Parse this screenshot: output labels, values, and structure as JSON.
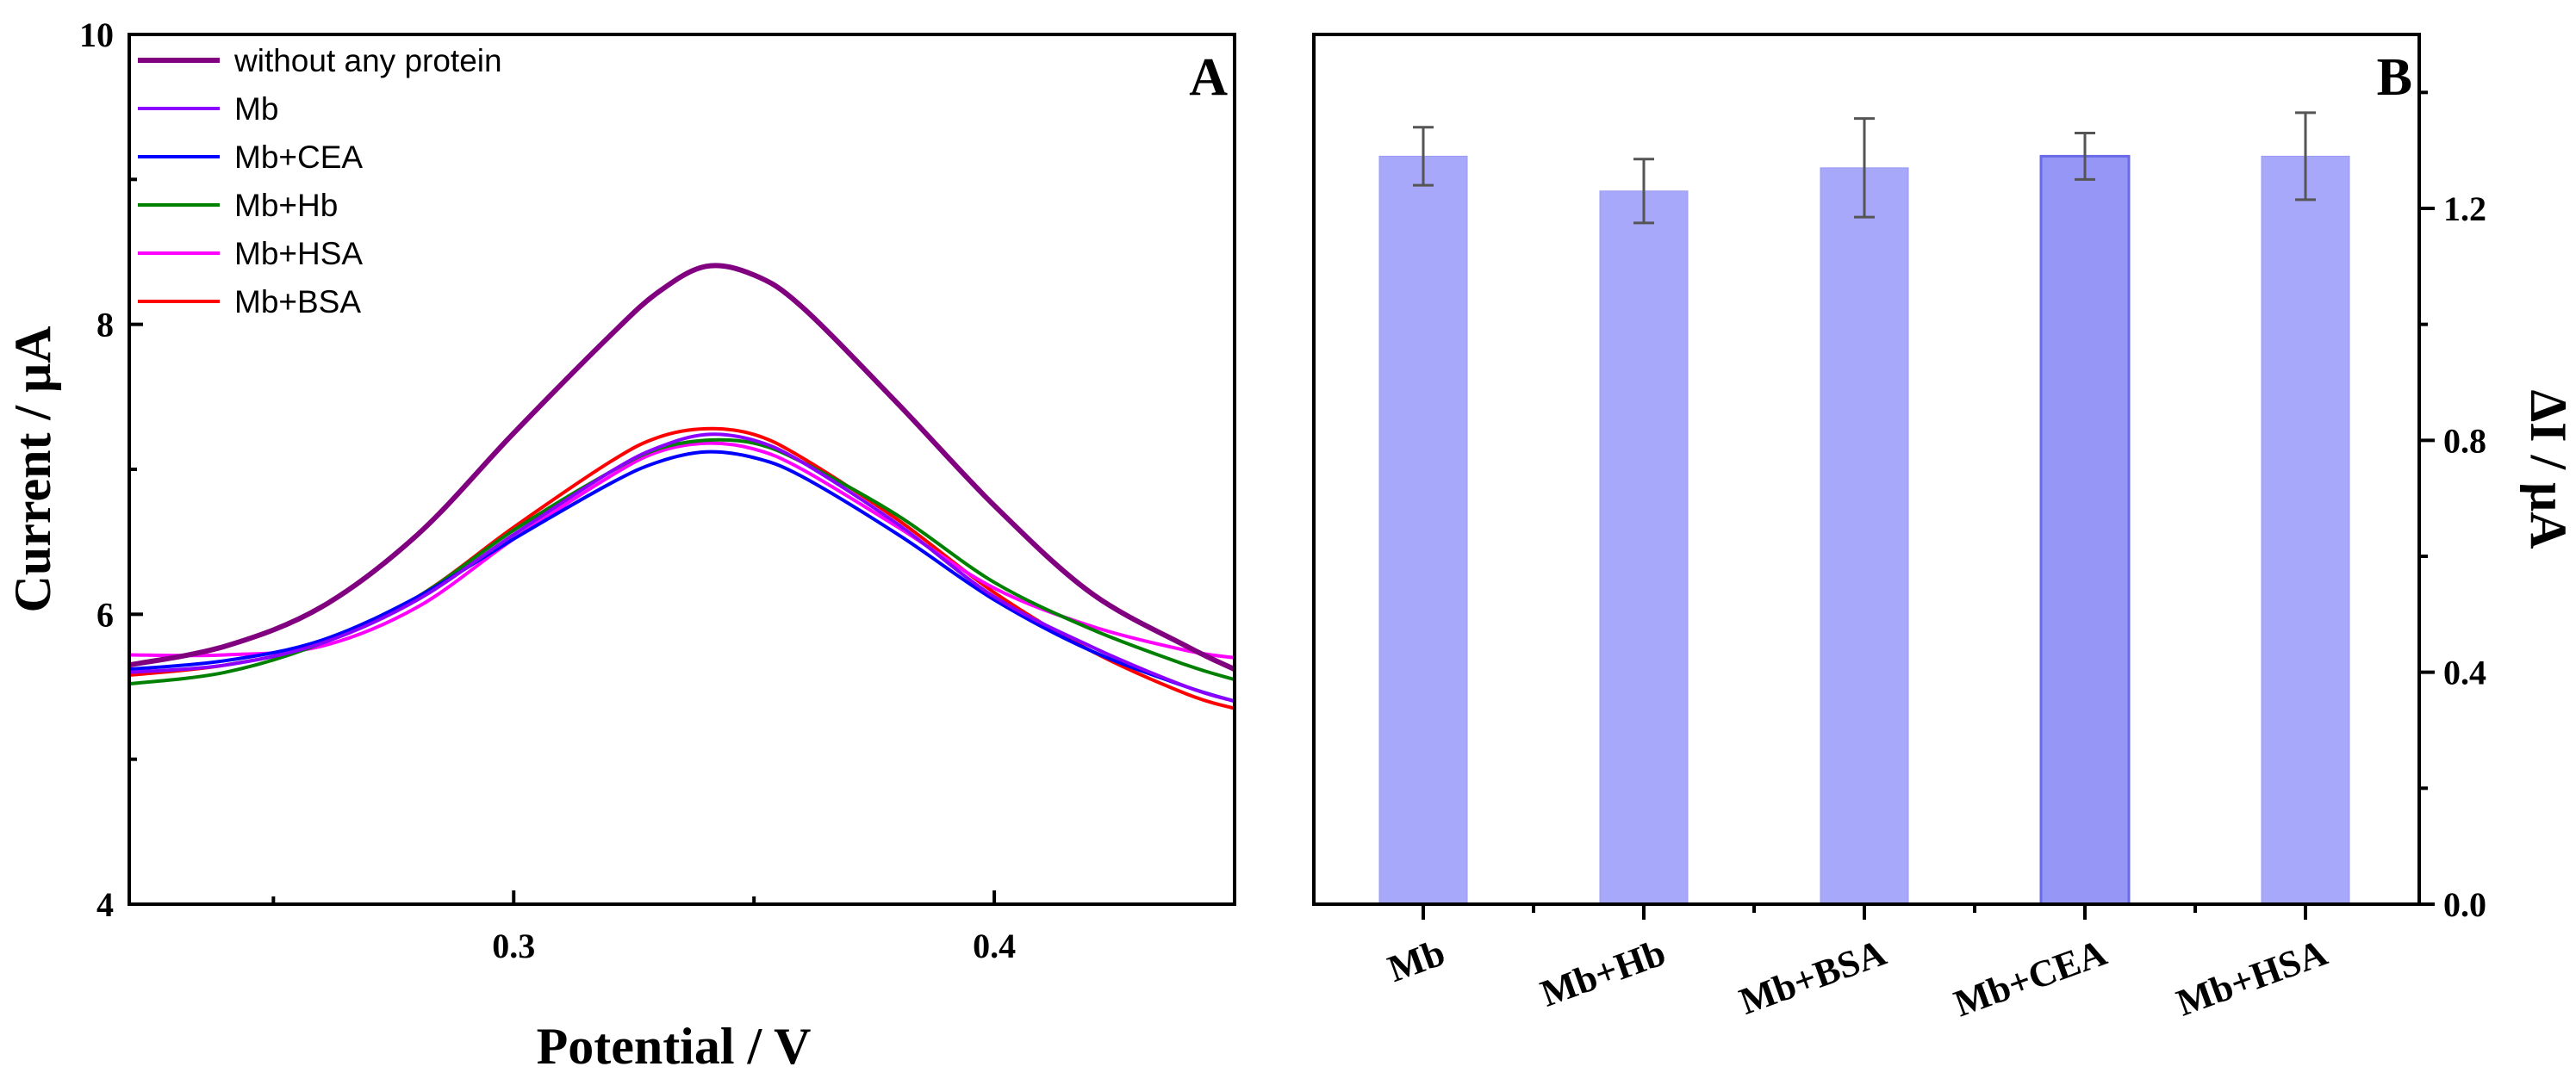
{
  "chart_data": [
    {
      "type": "line",
      "panel_label": "A",
      "title": "",
      "xlabel": "Potential / V",
      "ylabel": "Current / μA",
      "xlim": [
        0.22,
        0.45
      ],
      "ylim": [
        4,
        10
      ],
      "xticks": [
        0.3,
        0.4
      ],
      "xtick_labels": [
        "0.3",
        "0.4"
      ],
      "yticks": [
        4,
        6,
        8,
        10
      ],
      "ytick_labels": [
        "4",
        "6",
        "8",
        "10"
      ],
      "legend_position": "top-left",
      "series": [
        {
          "name": "without any protein",
          "color": "#800080",
          "x": [
            0.22,
            0.24,
            0.26,
            0.28,
            0.3,
            0.32,
            0.33,
            0.34,
            0.35,
            0.36,
            0.38,
            0.4,
            0.42,
            0.44,
            0.45
          ],
          "y": [
            5.65,
            5.78,
            6.05,
            6.55,
            7.25,
            7.92,
            8.22,
            8.4,
            8.34,
            8.12,
            7.45,
            6.75,
            6.15,
            5.78,
            5.62
          ]
        },
        {
          "name": "Mb",
          "color": "#8B00FF",
          "x": [
            0.22,
            0.24,
            0.26,
            0.28,
            0.3,
            0.32,
            0.33,
            0.34,
            0.35,
            0.36,
            0.38,
            0.4,
            0.42,
            0.44,
            0.45
          ],
          "y": [
            5.6,
            5.65,
            5.8,
            6.1,
            6.55,
            6.98,
            7.15,
            7.24,
            7.2,
            7.05,
            6.62,
            6.12,
            5.78,
            5.5,
            5.4
          ]
        },
        {
          "name": "Mb+CEA",
          "color": "#0000FF",
          "x": [
            0.22,
            0.24,
            0.26,
            0.28,
            0.3,
            0.32,
            0.33,
            0.34,
            0.35,
            0.36,
            0.38,
            0.4,
            0.42,
            0.44,
            0.45
          ],
          "y": [
            5.62,
            5.68,
            5.82,
            6.12,
            6.52,
            6.9,
            7.05,
            7.12,
            7.08,
            6.95,
            6.55,
            6.1,
            5.75,
            5.5,
            5.4
          ]
        },
        {
          "name": "Mb+Hb",
          "color": "#008000",
          "x": [
            0.22,
            0.24,
            0.26,
            0.28,
            0.3,
            0.32,
            0.33,
            0.34,
            0.35,
            0.36,
            0.38,
            0.4,
            0.42,
            0.44,
            0.45
          ],
          "y": [
            5.52,
            5.6,
            5.8,
            6.12,
            6.58,
            6.98,
            7.14,
            7.2,
            7.18,
            7.05,
            6.68,
            6.22,
            5.9,
            5.65,
            5.55
          ]
        },
        {
          "name": "Mb+HSA",
          "color": "#FF00FF",
          "x": [
            0.22,
            0.24,
            0.26,
            0.28,
            0.3,
            0.32,
            0.33,
            0.34,
            0.35,
            0.36,
            0.38,
            0.4,
            0.42,
            0.44,
            0.45
          ],
          "y": [
            5.72,
            5.72,
            5.78,
            6.05,
            6.52,
            6.95,
            7.12,
            7.18,
            7.14,
            7.0,
            6.6,
            6.18,
            5.92,
            5.75,
            5.7
          ]
        },
        {
          "name": "Mb+BSA",
          "color": "#FF0000",
          "x": [
            0.22,
            0.24,
            0.26,
            0.28,
            0.3,
            0.32,
            0.33,
            0.34,
            0.35,
            0.36,
            0.38,
            0.4,
            0.42,
            0.44,
            0.45
          ],
          "y": [
            5.58,
            5.65,
            5.8,
            6.12,
            6.6,
            7.05,
            7.22,
            7.28,
            7.24,
            7.08,
            6.65,
            6.15,
            5.75,
            5.45,
            5.35
          ]
        }
      ]
    },
    {
      "type": "bar",
      "panel_label": "B",
      "title": "",
      "xlabel": "",
      "ylabel": "ΔI / μA",
      "ylim": [
        0,
        1.5
      ],
      "yticks": [
        0,
        0.4,
        0.8,
        1.2
      ],
      "ytick_labels": [
        "0.0",
        "0.4",
        "0.8",
        "1.2"
      ],
      "y_axis_side": "right",
      "bar_color": "#A8A8FA",
      "highlight_color": "#9696F7",
      "categories": [
        "Mb",
        "Mb+Hb",
        "Mb+BSA",
        "Mb+CEA",
        "Mb+HSA"
      ],
      "values": [
        1.29,
        1.23,
        1.27,
        1.29,
        1.29
      ],
      "errors": [
        0.05,
        0.055,
        0.085,
        0.04,
        0.075
      ]
    }
  ]
}
